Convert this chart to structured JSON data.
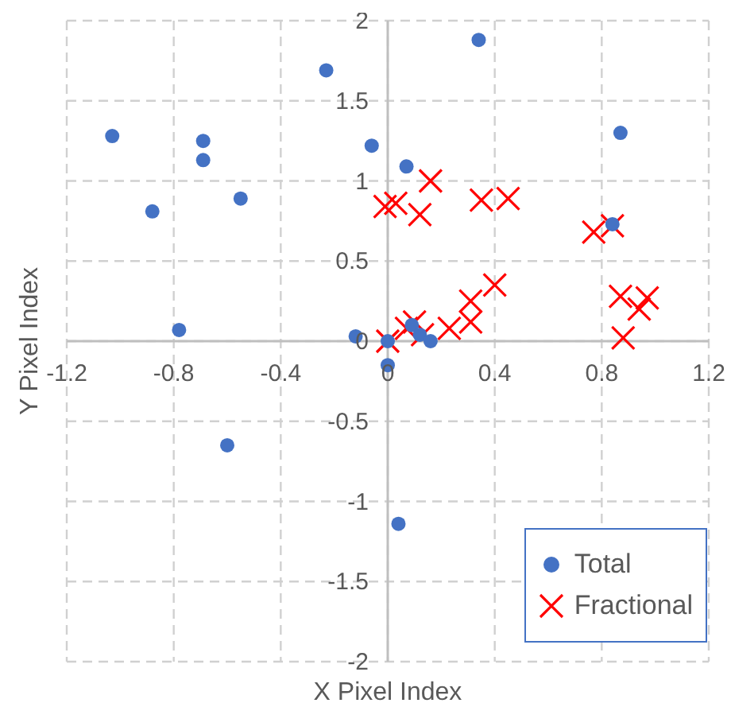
{
  "chart_data": {
    "type": "scatter",
    "xlabel": "X Pixel Index",
    "ylabel": "Y Pixel Index",
    "xlim": [
      -1.2,
      1.2
    ],
    "xticks": [
      -1.2,
      -0.8,
      -0.4,
      0,
      0.4,
      0.8,
      1.2
    ],
    "ylim": [
      -2,
      2
    ],
    "yticks": [
      -2,
      -1.5,
      -1,
      -0.5,
      0,
      0.5,
      1,
      1.5,
      2
    ],
    "grid": true,
    "legend": "bottom right",
    "series": [
      {
        "name": "Total",
        "color": "#4472c4",
        "marker": "circle",
        "x": [
          -1.03,
          -0.88,
          -0.69,
          -0.69,
          -0.55,
          -0.78,
          -0.23,
          -0.06,
          -0.12,
          0.34,
          0.07,
          0.87,
          0.84,
          0,
          0,
          0.09,
          0.12,
          0.16,
          -0.6,
          0.04
        ],
        "values": [
          1.28,
          0.81,
          1.25,
          1.13,
          0.89,
          0.07,
          1.69,
          1.22,
          0.03,
          1.88,
          1.09,
          1.3,
          0.73,
          0,
          -0.15,
          0.1,
          0.04,
          0,
          -0.65,
          -1.14
        ]
      },
      {
        "name": "Fractional",
        "color": "#ff0000",
        "marker": "cross",
        "x": [
          0,
          -0.01,
          0.03,
          0.16,
          0.12,
          0.35,
          0.45,
          0.77,
          0.84,
          0.4,
          0.31,
          0.31,
          0.23,
          0.07,
          0.1,
          0.13,
          0.87,
          0.94,
          0.97,
          0.88
        ],
        "values": [
          0,
          0.84,
          0.86,
          1.0,
          0.79,
          0.88,
          0.89,
          0.68,
          0.72,
          0.35,
          0.25,
          0.12,
          0.08,
          0.08,
          0.12,
          0.04,
          0.28,
          0.2,
          0.27,
          0.02
        ]
      }
    ]
  }
}
